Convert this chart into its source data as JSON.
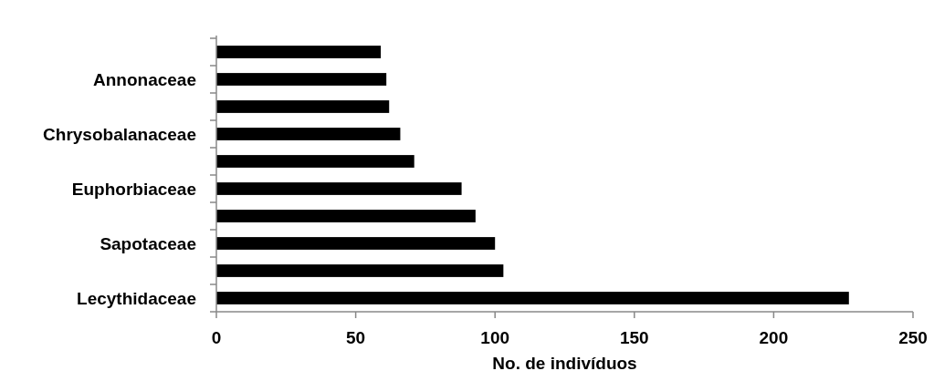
{
  "chart_data": {
    "type": "bar",
    "orientation": "horizontal",
    "xlabel": "No. de indivíduos",
    "categories": [
      null,
      "Annonaceae",
      null,
      "Chrysobalanaceae",
      null,
      "Euphorbiaceae",
      null,
      "Sapotaceae",
      null,
      "Lecythidaceae"
    ],
    "values": [
      59,
      61,
      62,
      66,
      71,
      88,
      93,
      100,
      103,
      227
    ],
    "color": "#000000",
    "xlim": [
      0,
      250
    ],
    "xticks": [
      0,
      50,
      100,
      150,
      200,
      250
    ],
    "grid": false
  }
}
